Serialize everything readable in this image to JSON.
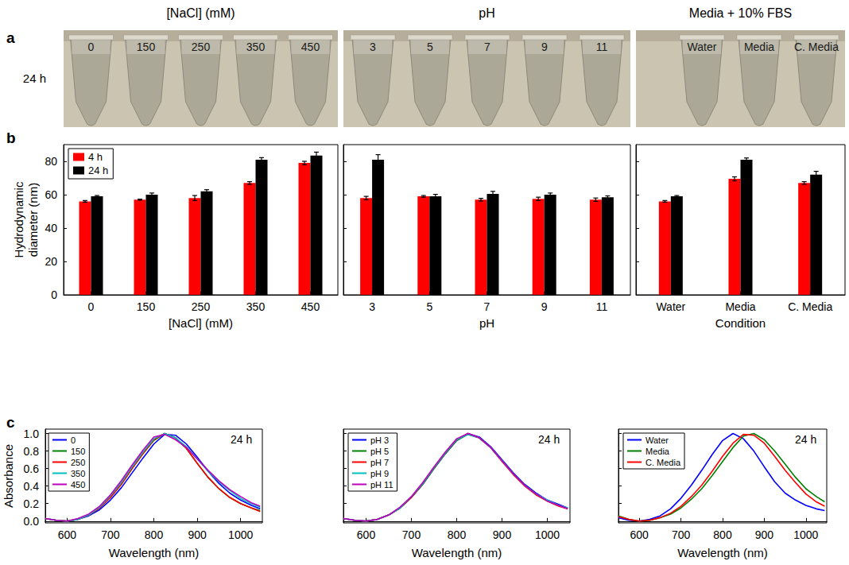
{
  "column_heads": [
    "[NaCl] (mM)",
    "pH",
    "Media + 10% FBS"
  ],
  "panel_letters": [
    "a",
    "b",
    "c"
  ],
  "panel_a": {
    "time": "24 h",
    "photos": [
      [
        "0",
        "150",
        "250",
        "350",
        "450"
      ],
      [
        "3",
        "5",
        "7",
        "9",
        "11"
      ],
      [
        "Water",
        "Media",
        "C. Media"
      ]
    ]
  },
  "chart_data": [
    {
      "type": "bar",
      "categories": [
        "0",
        "150",
        "250",
        "350",
        "450"
      ],
      "x_label": "[NaCl] (mM)",
      "y_label": "Hydrodynamic diameter (nm)",
      "ylim": [
        0,
        90
      ],
      "yticks": [
        0,
        20,
        40,
        60,
        80
      ],
      "legend": "top-left",
      "series": [
        {
          "name": "4 h",
          "color": "#ff0000",
          "values": [
            56,
            57,
            58,
            67,
            79
          ],
          "errors": [
            0.5,
            0.3,
            1.5,
            0.8,
            1
          ]
        },
        {
          "name": "24 h",
          "color": "#000000",
          "values": [
            59,
            60,
            62,
            81,
            83.5
          ],
          "errors": [
            0.5,
            1,
            1,
            1.2,
            2
          ]
        }
      ]
    },
    {
      "type": "bar",
      "categories": [
        "3",
        "5",
        "7",
        "9",
        "11"
      ],
      "x_label": "pH",
      "ylim": [
        0,
        90
      ],
      "yticks": [
        0,
        20,
        40,
        60,
        80
      ],
      "tick_labels": "x",
      "series": [
        {
          "name": "4 h",
          "color": "#ff0000",
          "values": [
            58,
            59,
            57,
            57.5,
            57
          ],
          "errors": [
            1,
            0.5,
            0.8,
            1,
            1
          ]
        },
        {
          "name": "24 h",
          "color": "#000000",
          "values": [
            81,
            59,
            60.5,
            60,
            58.5
          ],
          "errors": [
            3,
            1.2,
            1.5,
            1,
            0.8
          ]
        }
      ]
    },
    {
      "type": "bar",
      "categories": [
        "Water",
        "Media",
        "C. Media"
      ],
      "x_label": "Condition",
      "ylim": [
        0,
        90
      ],
      "yticks": [
        0,
        20,
        40,
        60,
        80
      ],
      "tick_labels": "x",
      "series": [
        {
          "name": "4 h",
          "color": "#ff0000",
          "values": [
            56,
            69.5,
            67
          ],
          "errors": [
            0.5,
            1.2,
            0.8
          ]
        },
        {
          "name": "24 h",
          "color": "#000000",
          "values": [
            59,
            81,
            72
          ],
          "errors": [
            0.5,
            1,
            2
          ]
        }
      ]
    },
    {
      "type": "line",
      "x": [
        550,
        575,
        600,
        625,
        650,
        675,
        700,
        725,
        750,
        775,
        800,
        825,
        850,
        875,
        900,
        925,
        950,
        975,
        1000,
        1025,
        1045
      ],
      "x_label": "Wavelength (nm)",
      "y_label": "Absorbance",
      "xlim": [
        550,
        1050
      ],
      "xticks": [
        600,
        700,
        800,
        900,
        1000
      ],
      "ylim": [
        -0.02,
        1.05
      ],
      "yticks": [
        {
          "value": 0,
          "label": "0.0"
        },
        0.2,
        0.4,
        0.6,
        0.8,
        {
          "value": 1,
          "label": "1.0"
        }
      ],
      "annotation": "24 h",
      "legend": "top-left",
      "series": [
        {
          "name": "0",
          "color": "#0000ff",
          "values": [
            0.03,
            0.01,
            0.0,
            0.02,
            0.06,
            0.13,
            0.24,
            0.38,
            0.55,
            0.72,
            0.88,
            0.99,
            0.98,
            0.88,
            0.73,
            0.57,
            0.43,
            0.32,
            0.24,
            0.18,
            0.14
          ]
        },
        {
          "name": "150",
          "color": "#008000",
          "values": [
            0.03,
            0.01,
            0.0,
            0.02,
            0.07,
            0.15,
            0.27,
            0.42,
            0.6,
            0.77,
            0.92,
            1.0,
            0.95,
            0.83,
            0.66,
            0.5,
            0.37,
            0.27,
            0.2,
            0.15,
            0.12
          ]
        },
        {
          "name": "250",
          "color": "#ff0000",
          "values": [
            0.03,
            0.01,
            0.0,
            0.02,
            0.07,
            0.15,
            0.27,
            0.42,
            0.6,
            0.77,
            0.93,
            1.0,
            0.95,
            0.83,
            0.66,
            0.5,
            0.37,
            0.27,
            0.2,
            0.15,
            0.11
          ]
        },
        {
          "name": "350",
          "color": "#00bfbf",
          "values": [
            0.03,
            0.01,
            0.0,
            0.02,
            0.07,
            0.16,
            0.29,
            0.44,
            0.62,
            0.79,
            0.94,
            1.0,
            0.95,
            0.85,
            0.71,
            0.57,
            0.45,
            0.35,
            0.26,
            0.2,
            0.16
          ]
        },
        {
          "name": "450",
          "color": "#bf00bf",
          "values": [
            0.03,
            0.01,
            0.0,
            0.03,
            0.08,
            0.17,
            0.3,
            0.46,
            0.64,
            0.81,
            0.96,
            0.99,
            0.93,
            0.84,
            0.71,
            0.58,
            0.46,
            0.36,
            0.28,
            0.21,
            0.17
          ]
        }
      ]
    },
    {
      "type": "line",
      "x": [
        550,
        575,
        600,
        625,
        650,
        675,
        700,
        725,
        750,
        775,
        800,
        825,
        850,
        875,
        900,
        925,
        950,
        975,
        1000,
        1025,
        1045
      ],
      "x_label": "Wavelength (nm)",
      "xlim": [
        550,
        1050
      ],
      "xticks": [
        600,
        700,
        800,
        900,
        1000
      ],
      "ylim": [
        -0.02,
        1.05
      ],
      "yticks": [
        {
          "value": 0,
          "label": "0.0"
        },
        0.2,
        0.4,
        0.6,
        0.8,
        {
          "value": 1,
          "label": "1.0"
        }
      ],
      "tick_labels": "x",
      "annotation": "24 h",
      "legend": "top-left",
      "series": [
        {
          "name": "pH 3",
          "color": "#0000ff",
          "values": [
            0.03,
            0.01,
            0.0,
            0.02,
            0.07,
            0.15,
            0.27,
            0.42,
            0.6,
            0.77,
            0.92,
            1.0,
            0.96,
            0.85,
            0.7,
            0.55,
            0.42,
            0.32,
            0.24,
            0.19,
            0.15
          ]
        },
        {
          "name": "pH 5",
          "color": "#008000",
          "values": [
            0.03,
            0.01,
            0.0,
            0.02,
            0.07,
            0.15,
            0.27,
            0.42,
            0.6,
            0.77,
            0.92,
            0.99,
            0.95,
            0.84,
            0.69,
            0.54,
            0.41,
            0.31,
            0.23,
            0.18,
            0.14
          ]
        },
        {
          "name": "pH 7",
          "color": "#ff0000",
          "values": [
            0.03,
            0.01,
            0.0,
            0.02,
            0.07,
            0.15,
            0.27,
            0.43,
            0.61,
            0.78,
            0.93,
            1.0,
            0.95,
            0.84,
            0.68,
            0.53,
            0.4,
            0.3,
            0.23,
            0.17,
            0.14
          ]
        },
        {
          "name": "pH 9",
          "color": "#00bfbf",
          "values": [
            0.03,
            0.01,
            0.0,
            0.02,
            0.07,
            0.15,
            0.28,
            0.43,
            0.61,
            0.78,
            0.93,
            0.99,
            0.95,
            0.84,
            0.69,
            0.54,
            0.41,
            0.31,
            0.24,
            0.18,
            0.15
          ]
        },
        {
          "name": "pH 11",
          "color": "#bf00bf",
          "values": [
            0.03,
            0.01,
            0.0,
            0.02,
            0.07,
            0.16,
            0.28,
            0.44,
            0.62,
            0.79,
            0.94,
            1.0,
            0.95,
            0.84,
            0.69,
            0.54,
            0.41,
            0.31,
            0.23,
            0.18,
            0.14
          ]
        }
      ]
    },
    {
      "type": "line",
      "x": [
        550,
        575,
        600,
        625,
        650,
        675,
        700,
        725,
        750,
        775,
        800,
        825,
        850,
        875,
        900,
        925,
        950,
        975,
        1000,
        1025,
        1045
      ],
      "x_label": "Wavelength (nm)",
      "xlim": [
        550,
        1050
      ],
      "xticks": [
        600,
        700,
        800,
        900,
        1000
      ],
      "ylim": [
        -0.02,
        1.05
      ],
      "yticks": [
        {
          "value": 0,
          "label": "0.0"
        },
        0.2,
        0.4,
        0.6,
        0.8,
        {
          "value": 1,
          "label": "1.0"
        }
      ],
      "tick_labels": "x",
      "annotation": "24 h",
      "legend": "top-left",
      "series": [
        {
          "name": "Water",
          "color": "#0000ff",
          "values": [
            0.04,
            0.01,
            0.0,
            0.02,
            0.06,
            0.14,
            0.26,
            0.41,
            0.58,
            0.76,
            0.92,
            1.0,
            0.94,
            0.8,
            0.62,
            0.45,
            0.32,
            0.24,
            0.18,
            0.14,
            0.12
          ]
        },
        {
          "name": "Media",
          "color": "#008000",
          "values": [
            0.06,
            0.02,
            0.0,
            0.01,
            0.04,
            0.08,
            0.15,
            0.25,
            0.37,
            0.52,
            0.68,
            0.84,
            0.97,
            1.0,
            0.93,
            0.8,
            0.65,
            0.5,
            0.37,
            0.28,
            0.22
          ]
        },
        {
          "name": "C. Media",
          "color": "#ff0000",
          "values": [
            0.05,
            0.02,
            0.0,
            0.01,
            0.04,
            0.09,
            0.17,
            0.28,
            0.41,
            0.57,
            0.74,
            0.89,
            0.99,
            0.98,
            0.89,
            0.74,
            0.58,
            0.44,
            0.31,
            0.22,
            0.17
          ]
        }
      ]
    }
  ]
}
